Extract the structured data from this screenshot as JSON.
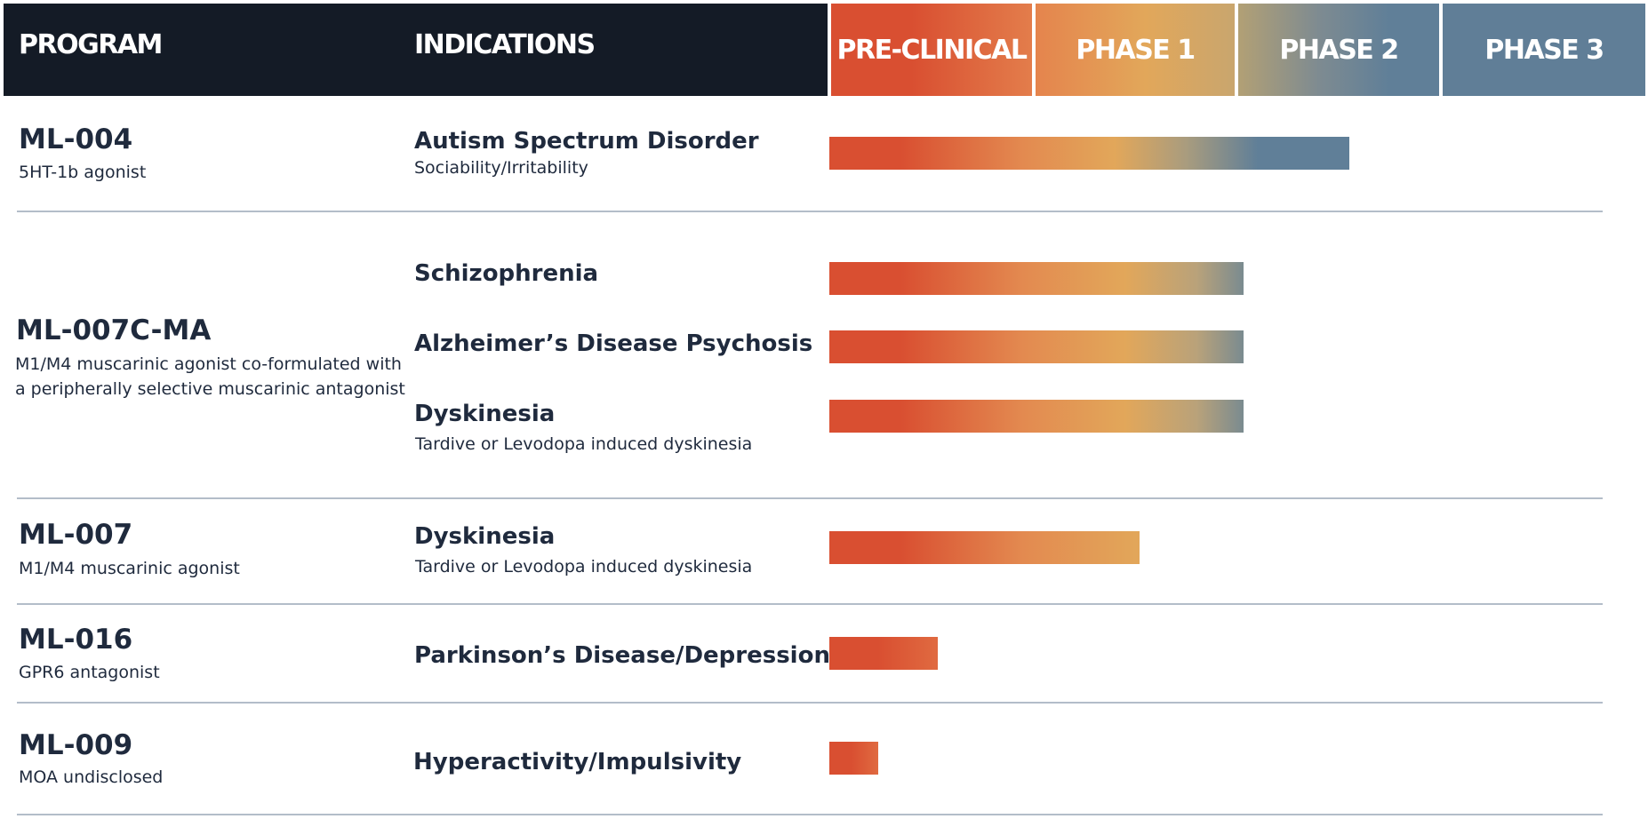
{
  "header": {
    "program_label": "PROGRAM",
    "indications_label": "INDICATIONS",
    "phases": [
      "PRE-CLINICAL",
      "PHASE 1",
      "PHASE 2",
      "PHASE 3"
    ],
    "phase_colors": [
      "#d94f31",
      "#e2a75a",
      "#607f98",
      "#607e97"
    ],
    "dark_bg": "#141b26"
  },
  "programs": [
    {
      "name": "ML-004",
      "description": "5HT-1b agonist"
    },
    {
      "name": "ML-007C-MA",
      "description": "M1/M4 muscarinic agonist co-formulated with\na peripherally selective muscarinic antagonist"
    },
    {
      "name": "ML-007",
      "description": "M1/M4 muscarinic agonist"
    },
    {
      "name": "ML-016",
      "description": "GPR6 antagonist"
    },
    {
      "name": "ML-009",
      "description": "MOA undisclosed"
    }
  ],
  "chart_data": {
    "type": "bar",
    "orientation": "horizontal",
    "x_categories": [
      "PRE-CLINICAL",
      "PHASE 1",
      "PHASE 2",
      "PHASE 3"
    ],
    "xlim": [
      0,
      4
    ],
    "bars": [
      {
        "program": "ML-004",
        "indication": "Autism Spectrum Disorder",
        "subtitle": "Sociability/Irritability",
        "progress": 2.55
      },
      {
        "program": "ML-007C-MA",
        "indication": "Schizophrenia",
        "subtitle": "",
        "progress": 2.03
      },
      {
        "program": "ML-007C-MA",
        "indication": "Alzheimer’s Disease Psychosis",
        "subtitle": "",
        "progress": 2.03
      },
      {
        "program": "ML-007C-MA",
        "indication": "Dyskinesia",
        "subtitle": "Tardive or Levodopa induced dyskinesia",
        "progress": 2.03
      },
      {
        "program": "ML-007",
        "indication": "Dyskinesia",
        "subtitle": "Tardive or Levodopa induced dyskinesia",
        "progress": 1.52
      },
      {
        "program": "ML-016",
        "indication": "Parkinson’s Disease/Depression",
        "subtitle": "",
        "progress": 0.53
      },
      {
        "program": "ML-009",
        "indication": "Hyperactivity/Impulsivity",
        "subtitle": "",
        "progress": 0.24
      }
    ]
  }
}
